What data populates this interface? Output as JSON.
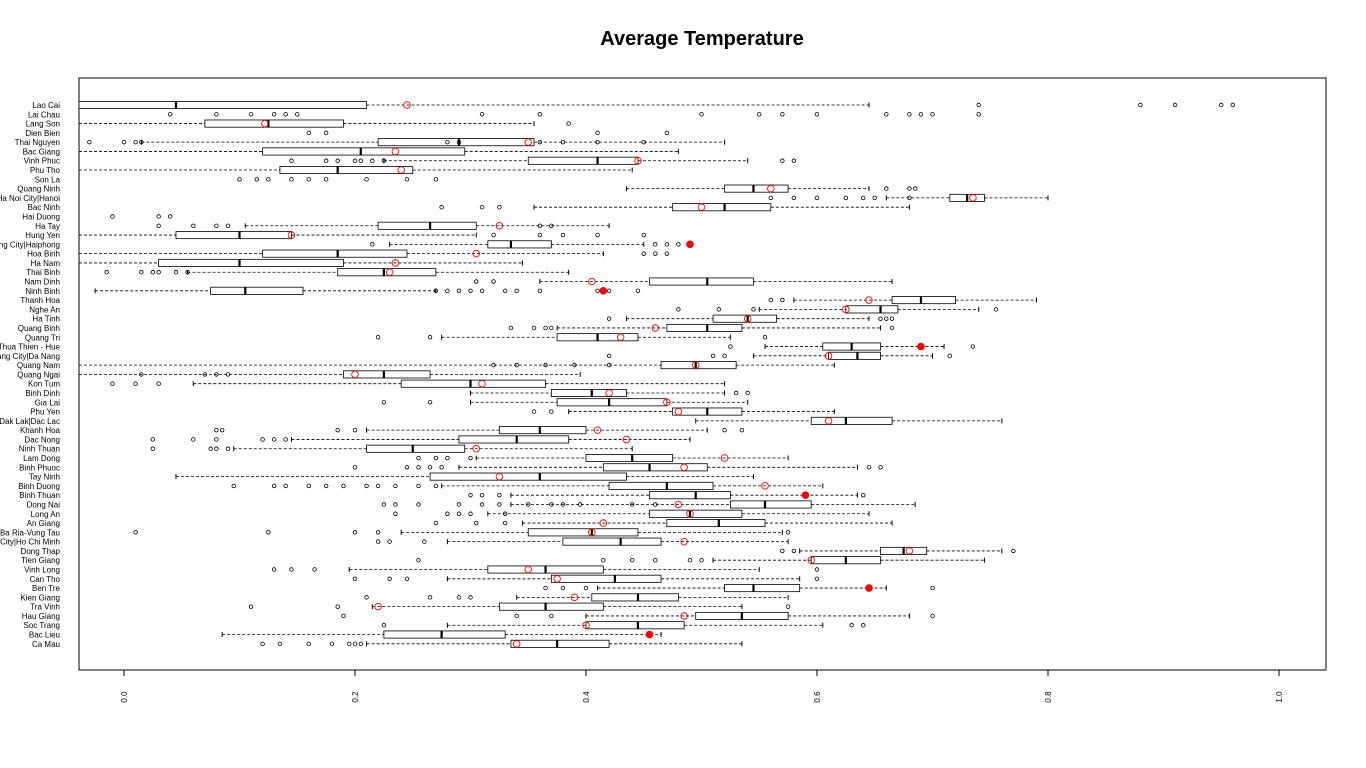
{
  "chart_data": {
    "type": "boxplot",
    "orientation": "horizontal",
    "title": "Average Temperature",
    "xlabel": "",
    "ylabel": "",
    "xlim": [
      -0.02,
      1.02
    ],
    "x_ticks": [
      0,
      0.2,
      0.4,
      0.6,
      0.8,
      1.0
    ],
    "x_tick_labels": [
      "0.0",
      "0.2",
      "0.4",
      "0.6",
      "0.8",
      "1.0"
    ],
    "grid": false,
    "legend": "none",
    "colors": {
      "box": "#000000",
      "mean_marker": "#ff0000",
      "outlier": "#000000"
    },
    "categories": [
      {
        "name": "Lao Cai",
        "whisker_low": -0.1,
        "q1": -0.1,
        "median": 0.045,
        "q3": 0.21,
        "whisker_high": 0.645,
        "mean": 0.245,
        "mean_filled": false,
        "outliers": [
          0.74,
          0.88,
          0.91,
          0.95,
          0.96
        ]
      },
      {
        "name": "Lai Chau",
        "whisker_low": -0.1,
        "q1": -0.1,
        "median": -0.1,
        "q3": -0.1,
        "whisker_high": -0.1,
        "mean": null,
        "mean_filled": false,
        "outliers": [
          0.04,
          0.08,
          0.11,
          0.13,
          0.14,
          0.15,
          0.31,
          0.36,
          0.5,
          0.55,
          0.57,
          0.6,
          0.66,
          0.68,
          0.69,
          0.7,
          0.74
        ]
      },
      {
        "name": "Lang Son",
        "whisker_low": -0.08,
        "q1": 0.07,
        "median": 0.125,
        "q3": 0.19,
        "whisker_high": 0.355,
        "mean": 0.122,
        "mean_filled": false,
        "outliers": [
          0.385
        ]
      },
      {
        "name": "Dien Bien",
        "whisker_low": -0.1,
        "q1": -0.1,
        "median": -0.1,
        "q3": -0.1,
        "whisker_high": -0.1,
        "mean": null,
        "mean_filled": false,
        "outliers": [
          0.16,
          0.175,
          0.41,
          0.47
        ]
      },
      {
        "name": "Thai Nguyen",
        "whisker_low": 0.015,
        "q1": 0.22,
        "median": 0.29,
        "q3": 0.355,
        "whisker_high": 0.52,
        "mean": 0.35,
        "mean_filled": false,
        "outliers": [
          -0.04,
          -0.03,
          0.0,
          0.01,
          0.015,
          0.28,
          0.29,
          0.36,
          0.38,
          0.41,
          0.45
        ]
      },
      {
        "name": "Bac Giang",
        "whisker_low": -0.1,
        "q1": 0.12,
        "median": 0.205,
        "q3": 0.295,
        "whisker_high": 0.48,
        "mean": 0.235,
        "mean_filled": false,
        "outliers": []
      },
      {
        "name": "Vinh Phuc",
        "whisker_low": 0.225,
        "q1": 0.35,
        "median": 0.41,
        "q3": 0.445,
        "whisker_high": 0.54,
        "mean": 0.445,
        "mean_filled": false,
        "outliers": [
          0.145,
          0.175,
          0.185,
          0.2,
          0.205,
          0.215,
          0.225,
          0.57,
          0.58
        ]
      },
      {
        "name": "Phu Tho",
        "whisker_low": -0.1,
        "q1": 0.135,
        "median": 0.185,
        "q3": 0.25,
        "whisker_high": 0.44,
        "mean": 0.24,
        "mean_filled": false,
        "outliers": []
      },
      {
        "name": "Son La",
        "whisker_low": -0.1,
        "q1": -0.1,
        "median": -0.1,
        "q3": -0.1,
        "whisker_high": -0.1,
        "mean": null,
        "mean_filled": false,
        "outliers": [
          0.1,
          0.115,
          0.125,
          0.145,
          0.16,
          0.175,
          0.21,
          0.245,
          0.27
        ]
      },
      {
        "name": "Quang Ninh",
        "whisker_low": 0.435,
        "q1": 0.52,
        "median": 0.545,
        "q3": 0.575,
        "whisker_high": 0.645,
        "mean": 0.56,
        "mean_filled": false,
        "outliers": [
          0.66,
          0.68,
          0.685
        ]
      },
      {
        "name": "Ha Noi City|Hanoi",
        "whisker_low": 0.66,
        "q1": 0.715,
        "median": 0.73,
        "q3": 0.745,
        "whisker_high": 0.8,
        "mean": 0.735,
        "mean_filled": false,
        "outliers": [
          0.56,
          0.58,
          0.6,
          0.625,
          0.64,
          0.65,
          0.68
        ]
      },
      {
        "name": "Bac Ninh",
        "whisker_low": 0.355,
        "q1": 0.475,
        "median": 0.52,
        "q3": 0.56,
        "whisker_high": 0.68,
        "mean": 0.5,
        "mean_filled": false,
        "outliers": [
          0.275,
          0.31,
          0.325
        ]
      },
      {
        "name": "Hai Duong",
        "whisker_low": -0.1,
        "q1": -0.1,
        "median": -0.1,
        "q3": -0.1,
        "whisker_high": -0.1,
        "mean": null,
        "mean_filled": false,
        "outliers": [
          -0.05,
          -0.01,
          0.03,
          0.04
        ]
      },
      {
        "name": "Ha Tay",
        "whisker_low": 0.105,
        "q1": 0.22,
        "median": 0.265,
        "q3": 0.305,
        "whisker_high": 0.42,
        "mean": 0.325,
        "mean_filled": false,
        "outliers": [
          -0.04,
          0.03,
          0.06,
          0.08,
          0.09,
          0.36,
          0.37
        ]
      },
      {
        "name": "Hung Yen",
        "whisker_low": -0.04,
        "q1": 0.045,
        "median": 0.1,
        "q3": 0.145,
        "whisker_high": 0.305,
        "mean": 0.145,
        "mean_filled": false,
        "outliers": [
          0.32,
          0.36,
          0.38,
          0.41,
          0.45
        ]
      },
      {
        "name": "Hai Phong City|Haiphong",
        "whisker_low": 0.23,
        "q1": 0.315,
        "median": 0.335,
        "q3": 0.37,
        "whisker_high": 0.45,
        "mean": 0.49,
        "mean_filled": true,
        "outliers": [
          0.215,
          0.46,
          0.47,
          0.48
        ]
      },
      {
        "name": "Hoa Binh",
        "whisker_low": -0.1,
        "q1": 0.12,
        "median": 0.185,
        "q3": 0.245,
        "whisker_high": 0.415,
        "mean": 0.305,
        "mean_filled": false,
        "outliers": [
          0.45,
          0.46,
          0.47
        ]
      },
      {
        "name": "Ha Nam",
        "whisker_low": -0.1,
        "q1": 0.03,
        "median": 0.1,
        "q3": 0.19,
        "whisker_high": 0.345,
        "mean": 0.235,
        "mean_filled": false,
        "outliers": []
      },
      {
        "name": "Thai Binh",
        "whisker_low": 0.055,
        "q1": 0.185,
        "median": 0.225,
        "q3": 0.27,
        "whisker_high": 0.385,
        "mean": 0.23,
        "mean_filled": false,
        "outliers": [
          -0.05,
          -0.015,
          0.015,
          0.025,
          0.03,
          0.045,
          0.055
        ]
      },
      {
        "name": "Nam Dinh",
        "whisker_low": 0.36,
        "q1": 0.455,
        "median": 0.505,
        "q3": 0.545,
        "whisker_high": 0.665,
        "mean": 0.405,
        "mean_filled": false,
        "outliers": [
          0.305,
          0.32
        ]
      },
      {
        "name": "Ninh Binh",
        "whisker_low": -0.025,
        "q1": 0.075,
        "median": 0.105,
        "q3": 0.155,
        "whisker_high": 0.27,
        "mean": 0.415,
        "mean_filled": true,
        "outliers": [
          0.27,
          0.28,
          0.29,
          0.3,
          0.31,
          0.33,
          0.34,
          0.36,
          0.41,
          0.42,
          0.445
        ]
      },
      {
        "name": "Thanh Hoa",
        "whisker_low": 0.58,
        "q1": 0.665,
        "median": 0.69,
        "q3": 0.72,
        "whisker_high": 0.79,
        "mean": 0.645,
        "mean_filled": false,
        "outliers": [
          0.56,
          0.57
        ]
      },
      {
        "name": "Nghe An",
        "whisker_low": 0.55,
        "q1": 0.625,
        "median": 0.655,
        "q3": 0.67,
        "whisker_high": 0.74,
        "mean": 0.625,
        "mean_filled": false,
        "outliers": [
          0.48,
          0.515,
          0.545,
          0.755
        ]
      },
      {
        "name": "Ha Tinh",
        "whisker_low": 0.435,
        "q1": 0.51,
        "median": 0.54,
        "q3": 0.565,
        "whisker_high": 0.645,
        "mean": 0.54,
        "mean_filled": false,
        "outliers": [
          0.42,
          0.655,
          0.66,
          0.665
        ]
      },
      {
        "name": "Quang Binh",
        "whisker_low": 0.375,
        "q1": 0.47,
        "median": 0.505,
        "q3": 0.535,
        "whisker_high": 0.655,
        "mean": 0.46,
        "mean_filled": false,
        "outliers": [
          0.335,
          0.355,
          0.365,
          0.37,
          0.665
        ]
      },
      {
        "name": "Quang Tri",
        "whisker_low": 0.275,
        "q1": 0.375,
        "median": 0.41,
        "q3": 0.445,
        "whisker_high": 0.525,
        "mean": 0.43,
        "mean_filled": false,
        "outliers": [
          0.22,
          0.265,
          0.555
        ]
      },
      {
        "name": "Thua Thien - Hue",
        "whisker_low": 0.555,
        "q1": 0.605,
        "median": 0.63,
        "q3": 0.655,
        "whisker_high": 0.71,
        "mean": 0.69,
        "mean_filled": true,
        "outliers": [
          0.525,
          0.735
        ]
      },
      {
        "name": "Da Nang City|Da Nang",
        "whisker_low": 0.545,
        "q1": 0.61,
        "median": 0.635,
        "q3": 0.655,
        "whisker_high": 0.7,
        "mean": 0.61,
        "mean_filled": false,
        "outliers": [
          0.42,
          0.51,
          0.52,
          0.715
        ]
      },
      {
        "name": "Quang Nam",
        "whisker_low": -0.1,
        "q1": 0.465,
        "median": 0.495,
        "q3": 0.53,
        "whisker_high": 0.615,
        "mean": 0.495,
        "mean_filled": false,
        "outliers": [
          0.32,
          0.34,
          0.365,
          0.39,
          0.42
        ]
      },
      {
        "name": "Quang Ngai",
        "whisker_low": -0.1,
        "q1": 0.19,
        "median": 0.225,
        "q3": 0.265,
        "whisker_high": 0.395,
        "mean": 0.2,
        "mean_filled": false,
        "outliers": [
          0.015,
          0.07,
          0.08,
          0.09
        ]
      },
      {
        "name": "Kon Tum",
        "whisker_low": 0.06,
        "q1": 0.24,
        "median": 0.3,
        "q3": 0.365,
        "whisker_high": 0.52,
        "mean": 0.31,
        "mean_filled": false,
        "outliers": [
          -0.01,
          0.01,
          0.03
        ]
      },
      {
        "name": "Binh Dinh",
        "whisker_low": 0.3,
        "q1": 0.37,
        "median": 0.405,
        "q3": 0.435,
        "whisker_high": 0.52,
        "mean": 0.42,
        "mean_filled": false,
        "outliers": [
          0.53,
          0.54
        ]
      },
      {
        "name": "Gia Lai",
        "whisker_low": 0.3,
        "q1": 0.375,
        "median": 0.42,
        "q3": 0.47,
        "whisker_high": 0.54,
        "mean": 0.47,
        "mean_filled": false,
        "outliers": [
          0.225,
          0.265
        ]
      },
      {
        "name": "Phu Yen",
        "whisker_low": 0.385,
        "q1": 0.475,
        "median": 0.505,
        "q3": 0.535,
        "whisker_high": 0.615,
        "mean": 0.48,
        "mean_filled": false,
        "outliers": [
          0.355,
          0.37
        ]
      },
      {
        "name": "Dak Lak|Dac Lac",
        "whisker_low": 0.495,
        "q1": 0.595,
        "median": 0.625,
        "q3": 0.665,
        "whisker_high": 0.76,
        "mean": 0.61,
        "mean_filled": false,
        "outliers": []
      },
      {
        "name": "Khanh Hoa",
        "whisker_low": 0.21,
        "q1": 0.325,
        "median": 0.36,
        "q3": 0.4,
        "whisker_high": 0.505,
        "mean": 0.41,
        "mean_filled": false,
        "outliers": [
          0.08,
          0.085,
          0.185,
          0.2,
          0.52,
          0.535
        ]
      },
      {
        "name": "Dac Nong",
        "whisker_low": 0.145,
        "q1": 0.29,
        "median": 0.34,
        "q3": 0.385,
        "whisker_high": 0.49,
        "mean": 0.435,
        "mean_filled": false,
        "outliers": [
          0.025,
          0.06,
          0.08,
          0.12,
          0.13,
          0.14
        ]
      },
      {
        "name": "Ninh Thuan",
        "whisker_low": 0.095,
        "q1": 0.21,
        "median": 0.25,
        "q3": 0.295,
        "whisker_high": 0.44,
        "mean": 0.305,
        "mean_filled": false,
        "outliers": [
          0.025,
          0.075,
          0.08,
          0.09
        ]
      },
      {
        "name": "Lam Dong",
        "whisker_low": 0.305,
        "q1": 0.4,
        "median": 0.44,
        "q3": 0.475,
        "whisker_high": 0.575,
        "mean": 0.52,
        "mean_filled": false,
        "outliers": [
          0.255,
          0.27,
          0.28,
          0.3
        ]
      },
      {
        "name": "Binh Phuoc",
        "whisker_low": 0.29,
        "q1": 0.415,
        "median": 0.455,
        "q3": 0.505,
        "whisker_high": 0.635,
        "mean": 0.485,
        "mean_filled": false,
        "outliers": [
          0.2,
          0.245,
          0.255,
          0.265,
          0.275,
          0.645,
          0.655
        ]
      },
      {
        "name": "Tay Ninh",
        "whisker_low": 0.045,
        "q1": 0.265,
        "median": 0.36,
        "q3": 0.435,
        "whisker_high": 0.545,
        "mean": 0.325,
        "mean_filled": false,
        "outliers": []
      },
      {
        "name": "Binh Duong",
        "whisker_low": 0.275,
        "q1": 0.42,
        "median": 0.47,
        "q3": 0.51,
        "whisker_high": 0.605,
        "mean": 0.555,
        "mean_filled": false,
        "outliers": [
          0.095,
          0.13,
          0.14,
          0.16,
          0.175,
          0.19,
          0.21,
          0.22,
          0.235,
          0.255,
          0.27
        ]
      },
      {
        "name": "Binh Thuan",
        "whisker_low": 0.335,
        "q1": 0.455,
        "median": 0.495,
        "q3": 0.525,
        "whisker_high": 0.635,
        "mean": 0.59,
        "mean_filled": true,
        "outliers": [
          0.3,
          0.31,
          0.325,
          0.64
        ]
      },
      {
        "name": "Dong Nai",
        "whisker_low": 0.335,
        "q1": 0.525,
        "median": 0.555,
        "q3": 0.595,
        "whisker_high": 0.685,
        "mean": 0.48,
        "mean_filled": false,
        "outliers": [
          0.225,
          0.235,
          0.255,
          0.29,
          0.31,
          0.325,
          0.35,
          0.37,
          0.38,
          0.395,
          0.44,
          0.46
        ]
      },
      {
        "name": "Long An",
        "whisker_low": 0.315,
        "q1": 0.455,
        "median": 0.49,
        "q3": 0.535,
        "whisker_high": 0.645,
        "mean": 0.49,
        "mean_filled": false,
        "outliers": [
          0.235,
          0.28,
          0.29,
          0.3,
          0.33
        ]
      },
      {
        "name": "An Giang",
        "whisker_low": 0.345,
        "q1": 0.47,
        "median": 0.515,
        "q3": 0.555,
        "whisker_high": 0.665,
        "mean": 0.415,
        "mean_filled": false,
        "outliers": [
          0.27,
          0.305,
          0.33
        ]
      },
      {
        "name": "Ba Ria-Vung Tau",
        "whisker_low": 0.24,
        "q1": 0.35,
        "median": 0.405,
        "q3": 0.445,
        "whisker_high": 0.57,
        "mean": 0.405,
        "mean_filled": false,
        "outliers": [
          0.01,
          0.125,
          0.2,
          0.22,
          0.575
        ]
      },
      {
        "name": "Ho Chi Minh City|Ho Chi Minh",
        "whisker_low": 0.28,
        "q1": 0.38,
        "median": 0.43,
        "q3": 0.465,
        "whisker_high": 0.575,
        "mean": 0.485,
        "mean_filled": false,
        "outliers": [
          0.22,
          0.23,
          0.26
        ]
      },
      {
        "name": "Dong Thap",
        "whisker_low": 0.585,
        "q1": 0.655,
        "median": 0.675,
        "q3": 0.695,
        "whisker_high": 0.76,
        "mean": 0.68,
        "mean_filled": false,
        "outliers": [
          0.57,
          0.58,
          0.77
        ]
      },
      {
        "name": "Tien Giang",
        "whisker_low": 0.51,
        "q1": 0.595,
        "median": 0.625,
        "q3": 0.655,
        "whisker_high": 0.745,
        "mean": 0.595,
        "mean_filled": false,
        "outliers": [
          0.255,
          0.415,
          0.44,
          0.46,
          0.49,
          0.5
        ]
      },
      {
        "name": "Vinh Long",
        "whisker_low": 0.195,
        "q1": 0.315,
        "median": 0.365,
        "q3": 0.415,
        "whisker_high": 0.55,
        "mean": 0.35,
        "mean_filled": false,
        "outliers": [
          0.13,
          0.145,
          0.165,
          0.6
        ]
      },
      {
        "name": "Can Tho",
        "whisker_low": 0.28,
        "q1": 0.37,
        "median": 0.425,
        "q3": 0.465,
        "whisker_high": 0.585,
        "mean": 0.375,
        "mean_filled": false,
        "outliers": [
          0.2,
          0.23,
          0.245,
          0.6
        ]
      },
      {
        "name": "Ben Tre",
        "whisker_low": 0.41,
        "q1": 0.52,
        "median": 0.545,
        "q3": 0.585,
        "whisker_high": 0.66,
        "mean": 0.645,
        "mean_filled": true,
        "outliers": [
          0.365,
          0.38,
          0.4,
          0.7
        ]
      },
      {
        "name": "Kien Giang",
        "whisker_low": 0.34,
        "q1": 0.405,
        "median": 0.445,
        "q3": 0.48,
        "whisker_high": 0.575,
        "mean": 0.39,
        "mean_filled": false,
        "outliers": [
          0.21,
          0.265,
          0.29,
          0.3
        ]
      },
      {
        "name": "Tra Vinh",
        "whisker_low": 0.215,
        "q1": 0.325,
        "median": 0.365,
        "q3": 0.415,
        "whisker_high": 0.535,
        "mean": 0.22,
        "mean_filled": false,
        "outliers": [
          0.11,
          0.185,
          0.575
        ]
      },
      {
        "name": "Hau Giang",
        "whisker_low": 0.4,
        "q1": 0.495,
        "median": 0.535,
        "q3": 0.575,
        "whisker_high": 0.68,
        "mean": 0.485,
        "mean_filled": false,
        "outliers": [
          0.19,
          0.34,
          0.37,
          0.7
        ]
      },
      {
        "name": "Soc Trang",
        "whisker_low": 0.28,
        "q1": 0.4,
        "median": 0.445,
        "q3": 0.485,
        "whisker_high": 0.605,
        "mean": 0.4,
        "mean_filled": false,
        "outliers": [
          0.225,
          0.63,
          0.64
        ]
      },
      {
        "name": "Bac Lieu",
        "whisker_low": 0.085,
        "q1": 0.225,
        "median": 0.275,
        "q3": 0.33,
        "whisker_high": 0.465,
        "mean": 0.455,
        "mean_filled": true,
        "outliers": []
      },
      {
        "name": "Ca Mau",
        "whisker_low": 0.21,
        "q1": 0.335,
        "median": 0.375,
        "q3": 0.42,
        "whisker_high": 0.535,
        "mean": 0.34,
        "mean_filled": false,
        "outliers": [
          0.12,
          0.135,
          0.16,
          0.18,
          0.195,
          0.2,
          0.205
        ]
      }
    ]
  }
}
